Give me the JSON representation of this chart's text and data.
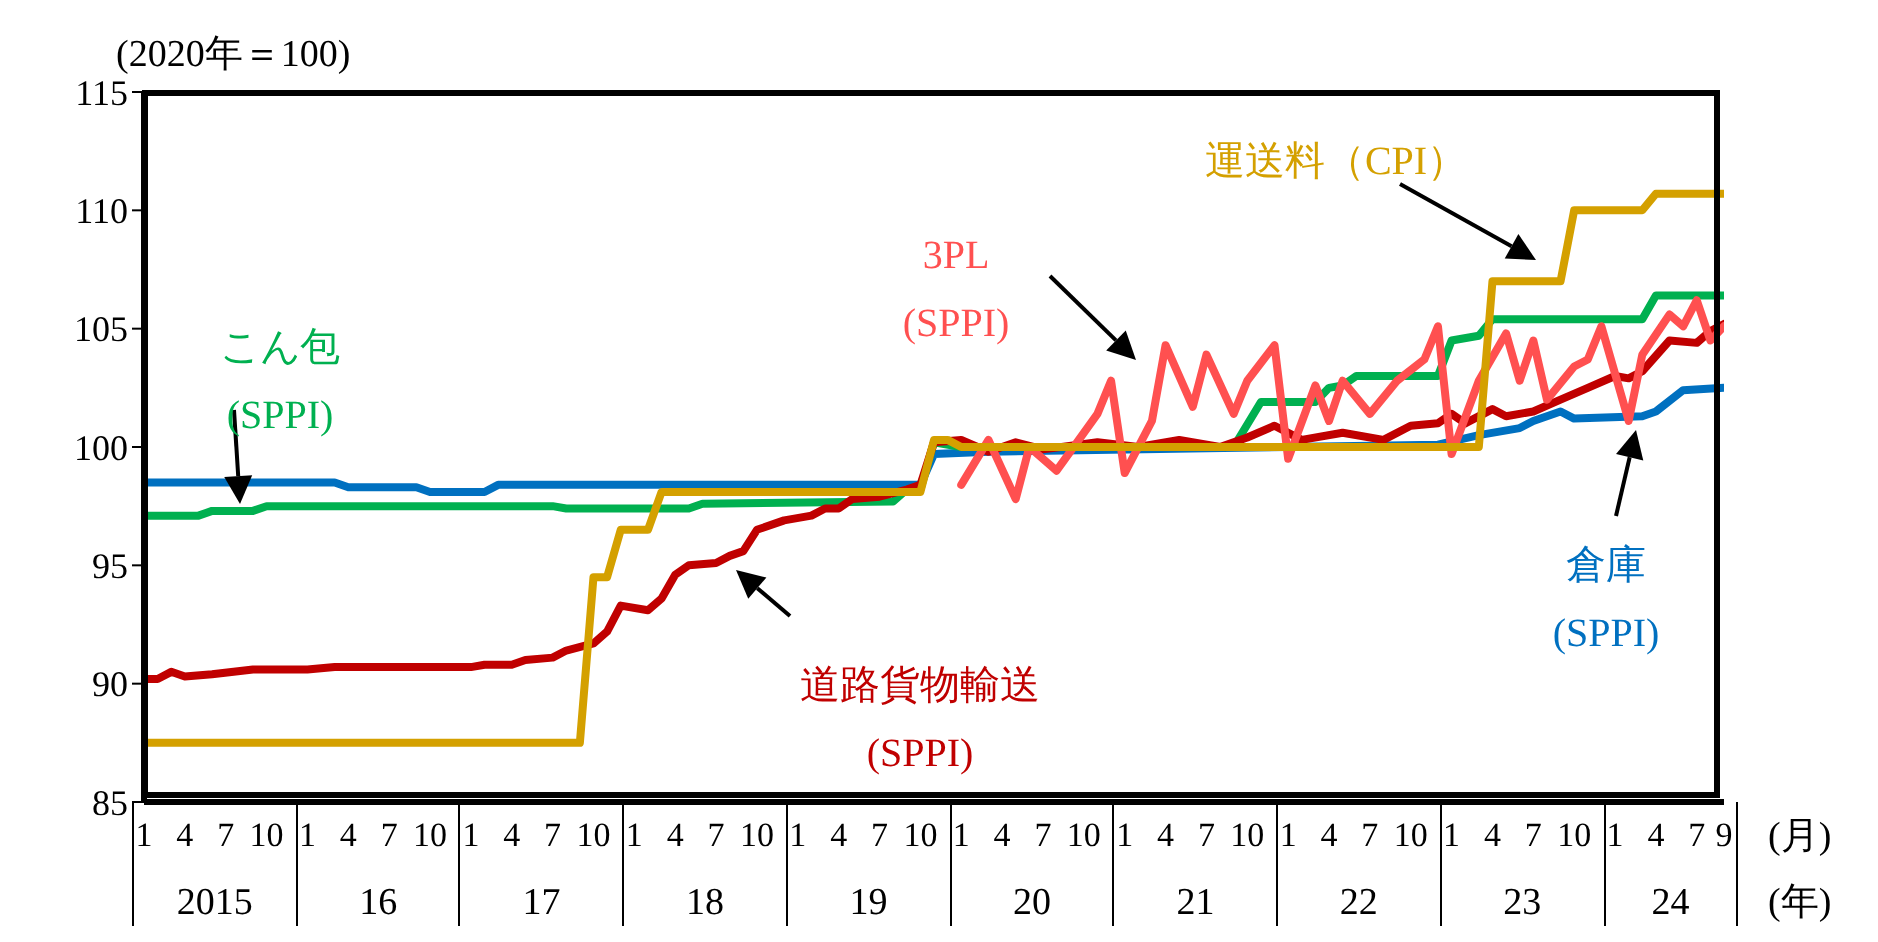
{
  "chart_data": {
    "type": "line",
    "ylabel": "(2020年＝100)",
    "xlabel": "(月)",
    "annotations": [
      "2015",
      "16",
      "17",
      "18",
      "19",
      "20",
      "21",
      "22",
      "23",
      "24",
      "(年)"
    ],
    "xlim": [
      "2015-01",
      "2024-09"
    ],
    "xticks": [
      {
        "value": "2015-01",
        "label": "1"
      },
      {
        "value": "2015-04",
        "label": "4"
      },
      {
        "value": "2015-07",
        "label": "7"
      },
      {
        "value": "2015-10",
        "label": "10"
      },
      {
        "value": "2016-01",
        "label": "1"
      },
      {
        "value": "2016-04",
        "label": "4"
      },
      {
        "value": "2016-07",
        "label": "7"
      },
      {
        "value": "2016-10",
        "label": "10"
      },
      {
        "value": "2017-01",
        "label": "1"
      },
      {
        "value": "2017-04",
        "label": "4"
      },
      {
        "value": "2017-07",
        "label": "7"
      },
      {
        "value": "2017-10",
        "label": "10"
      },
      {
        "value": "2018-01",
        "label": "1"
      },
      {
        "value": "2018-04",
        "label": "4"
      },
      {
        "value": "2018-07",
        "label": "7"
      },
      {
        "value": "2018-10",
        "label": "10"
      },
      {
        "value": "2019-01",
        "label": "1"
      },
      {
        "value": "2019-04",
        "label": "4"
      },
      {
        "value": "2019-07",
        "label": "7"
      },
      {
        "value": "2019-10",
        "label": "10"
      },
      {
        "value": "2020-01",
        "label": "1"
      },
      {
        "value": "2020-04",
        "label": "4"
      },
      {
        "value": "2020-07",
        "label": "7"
      },
      {
        "value": "2020-10",
        "label": "10"
      },
      {
        "value": "2021-01",
        "label": "1"
      },
      {
        "value": "2021-04",
        "label": "4"
      },
      {
        "value": "2021-07",
        "label": "7"
      },
      {
        "value": "2021-10",
        "label": "10"
      },
      {
        "value": "2022-01",
        "label": "1"
      },
      {
        "value": "2022-04",
        "label": "4"
      },
      {
        "value": "2022-07",
        "label": "7"
      },
      {
        "value": "2022-10",
        "label": "10"
      },
      {
        "value": "2023-01",
        "label": "1"
      },
      {
        "value": "2023-04",
        "label": "4"
      },
      {
        "value": "2023-07",
        "label": "7"
      },
      {
        "value": "2023-10",
        "label": "10"
      },
      {
        "value": "2024-01",
        "label": "1"
      },
      {
        "value": "2024-04",
        "label": "4"
      },
      {
        "value": "2024-07",
        "label": "7"
      },
      {
        "value": "2024-09",
        "label": "9"
      }
    ],
    "ylim": [
      85,
      115
    ],
    "yticks": [
      85,
      90,
      95,
      100,
      105,
      110,
      115
    ],
    "grid": false,
    "legend": false,
    "line_style": "solid",
    "series": [
      {
        "name": "倉庫\n(SPPI)",
        "color": "#0070c0",
        "x": [
          "2015-01",
          "2016-03",
          "2016-04",
          "2016-09",
          "2016-10",
          "2017-02",
          "2017-03",
          "2019-10",
          "2019-11",
          "2020-03",
          "2022-12",
          "2023-03",
          "2023-06",
          "2023-07",
          "2023-09",
          "2023-10",
          "2024-03",
          "2024-04",
          "2024-06",
          "2024-09"
        ],
        "values": [
          98.5,
          98.5,
          98.3,
          98.3,
          98.1,
          98.1,
          98.4,
          98.4,
          99.7,
          99.8,
          100.1,
          100.5,
          100.8,
          101.1,
          101.5,
          101.2,
          101.3,
          101.5,
          102.4,
          102.5
        ]
      },
      {
        "name": "こん包\n(SPPI)",
        "color": "#00b050",
        "x": [
          "2015-01",
          "2015-05",
          "2015-06",
          "2015-09",
          "2015-10",
          "2017-07",
          "2017-08",
          "2018-05",
          "2018-06",
          "2019-08",
          "2019-09",
          "2019-10",
          "2019-11",
          "2020-01",
          "2021-09",
          "2021-11",
          "2022-03",
          "2022-04",
          "2022-05",
          "2022-06",
          "2022-12",
          "2023-01",
          "2023-03",
          "2023-04",
          "2024-03",
          "2024-04",
          "2024-09"
        ],
        "values": [
          97.1,
          97.1,
          97.3,
          97.3,
          97.5,
          97.5,
          97.4,
          97.4,
          97.6,
          97.7,
          98.2,
          98.2,
          100.2,
          100.0,
          100.0,
          101.9,
          101.9,
          102.5,
          102.6,
          103.0,
          103.0,
          104.5,
          104.7,
          105.4,
          105.4,
          106.4,
          106.4
        ]
      },
      {
        "name": "道路貨物輸送\n(SPPI)",
        "color": "#c00000",
        "x": [
          "2015-01",
          "2015-02",
          "2015-03",
          "2015-04",
          "2015-06",
          "2015-09",
          "2016-01",
          "2016-03",
          "2017-01",
          "2017-02",
          "2017-04",
          "2017-05",
          "2017-07",
          "2017-08",
          "2017-10",
          "2017-11",
          "2017-12",
          "2018-02",
          "2018-03",
          "2018-04",
          "2018-05",
          "2018-07",
          "2018-08",
          "2018-09",
          "2018-10",
          "2018-12",
          "2019-02",
          "2019-03",
          "2019-04",
          "2019-05",
          "2019-07",
          "2019-09",
          "2019-10",
          "2019-11",
          "2020-01",
          "2020-03",
          "2020-05",
          "2020-07",
          "2020-11",
          "2021-02",
          "2021-05",
          "2021-08",
          "2021-10",
          "2021-12",
          "2022-02",
          "2022-05",
          "2022-08",
          "2022-10",
          "2022-12",
          "2023-01",
          "2023-02",
          "2023-04",
          "2023-05",
          "2023-07",
          "2023-09",
          "2023-11",
          "2024-01",
          "2024-02",
          "2024-03",
          "2024-05",
          "2024-07",
          "2024-08",
          "2024-09"
        ],
        "values": [
          90.2,
          90.2,
          90.5,
          90.3,
          90.4,
          90.6,
          90.6,
          90.7,
          90.7,
          90.8,
          90.8,
          91.0,
          91.1,
          91.4,
          91.7,
          92.2,
          93.3,
          93.1,
          93.6,
          94.6,
          95.0,
          95.1,
          95.4,
          95.6,
          96.5,
          96.9,
          97.1,
          97.4,
          97.4,
          97.8,
          97.9,
          98.2,
          98.4,
          100.2,
          100.3,
          99.8,
          100.2,
          99.9,
          100.2,
          100.0,
          100.3,
          100.0,
          100.4,
          100.9,
          100.3,
          100.6,
          100.3,
          100.9,
          101.0,
          101.4,
          101.0,
          101.6,
          101.3,
          101.5,
          102.0,
          102.5,
          103.0,
          102.9,
          103.2,
          104.5,
          104.4,
          104.9,
          105.2
        ]
      },
      {
        "name": "3PL\n(SPPI)",
        "color": "#ff5050",
        "x": [
          "2020-01",
          "2020-03",
          "2020-05",
          "2020-06",
          "2020-08",
          "2020-10",
          "2020-11",
          "2020-12",
          "2021-01",
          "2021-03",
          "2021-04",
          "2021-06",
          "2021-07",
          "2021-09",
          "2021-10",
          "2021-12",
          "2022-01",
          "2022-03",
          "2022-04",
          "2022-05",
          "2022-07",
          "2022-09",
          "2022-11",
          "2022-12",
          "2023-01",
          "2023-03",
          "2023-05",
          "2023-06",
          "2023-07",
          "2023-08",
          "2023-10",
          "2023-11",
          "2023-12",
          "2024-02",
          "2024-03",
          "2024-05",
          "2024-06",
          "2024-07",
          "2024-08",
          "2024-09"
        ],
        "values": [
          98.4,
          100.3,
          97.8,
          100.0,
          99.0,
          100.6,
          101.4,
          102.8,
          98.9,
          101.1,
          104.3,
          101.7,
          103.9,
          101.4,
          102.8,
          104.3,
          99.5,
          102.6,
          101.1,
          102.8,
          101.4,
          102.8,
          103.7,
          105.1,
          99.7,
          102.8,
          104.8,
          102.8,
          104.5,
          102.0,
          103.4,
          103.7,
          105.1,
          101.1,
          103.9,
          105.6,
          105.1,
          106.2,
          104.5,
          105.1
        ]
      },
      {
        "name": "運送料（CPI）",
        "color": "#d4a000",
        "x": [
          "2015-01",
          "2017-09",
          "2017-10",
          "2017-11",
          "2017-12",
          "2018-02",
          "2018-03",
          "2019-10",
          "2019-11",
          "2019-12",
          "2020-01",
          "2023-03",
          "2023-04",
          "2023-09",
          "2023-10",
          "2024-03",
          "2024-04",
          "2024-09"
        ],
        "values": [
          87.5,
          87.5,
          94.5,
          94.5,
          96.5,
          96.5,
          98.1,
          98.1,
          100.3,
          100.3,
          100.0,
          100.0,
          107.0,
          107.0,
          110.0,
          110.0,
          110.7,
          110.7
        ]
      }
    ]
  }
}
